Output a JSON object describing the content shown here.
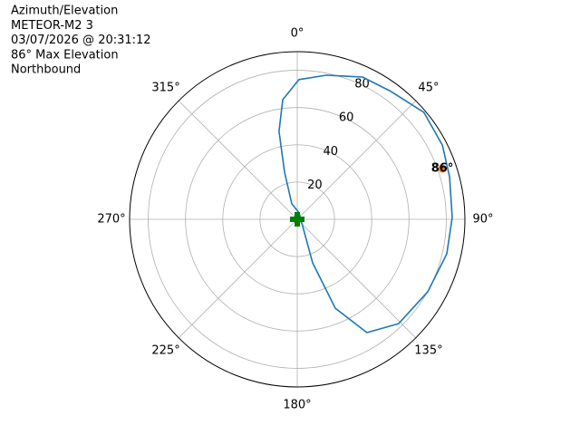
{
  "chart_data": {
    "type": "polar",
    "title_lines": [
      "Azimuth/Elevation",
      "METEOR-M2 3",
      "03/07/2026 @ 20:31:12",
      "86° Max Elevation",
      "Northbound"
    ],
    "theta_direction": "clockwise",
    "theta_zero": "north",
    "rlim": [
      0,
      90
    ],
    "rticks": [
      20,
      40,
      60,
      80
    ],
    "thetaticks": [
      {
        "value": 0,
        "label": "0°"
      },
      {
        "value": 45,
        "label": "45°"
      },
      {
        "value": 90,
        "label": "90°"
      },
      {
        "value": 135,
        "label": "135°"
      },
      {
        "value": 180,
        "label": "180°"
      },
      {
        "value": 225,
        "label": "225°"
      },
      {
        "value": 270,
        "label": "270°"
      },
      {
        "value": 315,
        "label": "315°"
      }
    ],
    "grid": true,
    "series": [
      {
        "color": "#1f77b4",
        "theta": [
          16,
          160.5,
          156.8,
          148.4,
          135.8,
          119.1,
          103,
          89.3,
          74.4,
          62.9,
          49.8,
          35.7,
          24.6,
          11.4,
          0.7,
          353.1,
          348.3,
          344.9,
          340.6,
          16
        ],
        "r": [
          3.6,
          24.8,
          51.9,
          71.4,
          78.1,
          80.1,
          82.4,
          83.2,
          84.9,
          87.5,
          89,
          85,
          84,
          78.9,
          75,
          64.7,
          48.2,
          26.2,
          8.8,
          3.6
        ]
      }
    ],
    "markers": [
      {
        "theta": 0,
        "r": 0,
        "color": "green",
        "shape": "plus"
      },
      {
        "theta": 70.7,
        "r": 82.5,
        "color": "#ff7f0e",
        "shape": "circle",
        "label": "86°"
      }
    ]
  }
}
